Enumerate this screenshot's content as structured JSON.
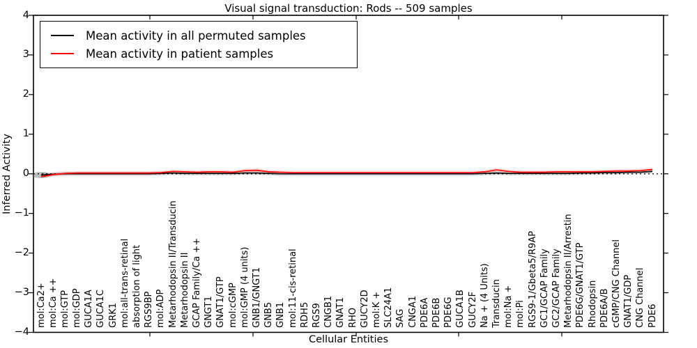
{
  "figure": {
    "title": "Visual signal transduction: Rods -- 509 samples",
    "xlabel": "Cellular Entities",
    "ylabel": "Inferred Activity"
  },
  "legend": {
    "items": [
      {
        "label": "Mean activity in all permuted samples",
        "color": "#000000"
      },
      {
        "label": "Mean activity in patient samples",
        "color": "#ff0000"
      }
    ]
  },
  "axes": {
    "y_tick_labels": [
      "4",
      "3",
      "2",
      "1",
      "0",
      "−1",
      "−2",
      "−3",
      "−4"
    ],
    "y_tick_values": [
      4,
      3,
      2,
      1,
      0,
      -1,
      -2,
      -3,
      -4
    ]
  },
  "chart_data": {
    "type": "line",
    "title": "Visual signal transduction: Rods -- 509 samples",
    "xlabel": "Cellular Entities",
    "ylabel": "Inferred Activity",
    "ylim": [
      -4,
      4
    ],
    "grid": false,
    "zero_reference_line": "black dotted",
    "legend_position": "upper left",
    "categories": [
      "mol:Ca2+",
      "mol:Ca ++",
      "mol:GTP",
      "mol:GDP",
      "GUCA1A",
      "GUCA1C",
      "GRK1",
      "mol:all-trans-retinal",
      "absorption of light",
      "RGS9BP",
      "mol:ADP",
      "Metarhodopsin II/Transducin",
      "Metarhodopsin II",
      "GCAP Family/Ca ++",
      "GNGT1",
      "GNAT1/GTP",
      "mol:cGMP",
      "mol:GMP (4 units)",
      "GNB1/GNGT1",
      "GNB5",
      "GNB1",
      "mol:11-cis-retinal",
      "RDH5",
      "RGS9",
      "CNGB1",
      "GNAT1",
      "RHO",
      "GUCY2D",
      "mol:K +",
      "SLC24A1",
      "SAG",
      "CNGA1",
      "PDE6A",
      "PDE6B",
      "PDE6G",
      "GUCA1B",
      "GUCY2F",
      "Na + (4 Units)",
      "Transducin",
      "mol:Na +",
      "mol:Pi",
      "RGS9-1/Gbeta5/R9AP",
      "GC1/GCAP Family",
      "GC2/GCAP Family",
      "Metarhodopsin II/Arrestin",
      "PDE6G/GNAT1/GTP",
      "Rhodopsin",
      "PDE6A/B",
      "cGMP/CNG Channel",
      "GNAT1/GDP",
      "CNG Channel",
      "PDE6"
    ],
    "series": [
      {
        "name": "Mean activity in all permuted samples",
        "color": "#000000",
        "values": [
          -0.03,
          -0.01,
          0,
          0,
          0,
          0,
          0,
          0,
          0,
          0,
          0.01,
          0.02,
          0.01,
          0.01,
          0.01,
          0.01,
          0.01,
          0.02,
          0.02,
          0.01,
          0,
          0,
          0,
          0,
          0,
          0,
          0,
          0,
          0,
          0,
          0,
          0,
          0,
          0,
          0,
          0,
          0,
          0.01,
          0.02,
          0.01,
          0.01,
          0.01,
          0.01,
          0.01,
          0.01,
          0.02,
          0.02,
          0.03,
          0.03,
          0.04,
          0.04,
          0.06
        ]
      },
      {
        "name": "Mean activity in patient samples",
        "color": "#ff0000",
        "values": [
          -0.07,
          -0.02,
          0.01,
          0.02,
          0.02,
          0.02,
          0.02,
          0.02,
          0.02,
          0.02,
          0.03,
          0.06,
          0.05,
          0.04,
          0.05,
          0.05,
          0.04,
          0.08,
          0.09,
          0.05,
          0.04,
          0.03,
          0.03,
          0.03,
          0.03,
          0.03,
          0.03,
          0.03,
          0.03,
          0.03,
          0.03,
          0.03,
          0.03,
          0.03,
          0.03,
          0.03,
          0.03,
          0.05,
          0.1,
          0.06,
          0.04,
          0.04,
          0.04,
          0.05,
          0.05,
          0.05,
          0.05,
          0.06,
          0.07,
          0.07,
          0.08,
          0.11
        ]
      }
    ]
  }
}
